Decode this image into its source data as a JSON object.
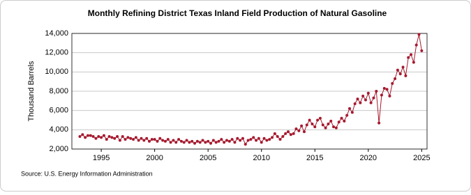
{
  "chart_data": {
    "type": "line",
    "title": "Monthly Refining District Texas Inland Field Production of Natural Gasoline",
    "y_label": "Thousand Barrels",
    "source": "Source: U.S. Energy Information Administration",
    "x": [
      1993,
      1993.25,
      1993.5,
      1993.75,
      1994,
      1994.25,
      1994.5,
      1994.75,
      1995,
      1995.25,
      1995.5,
      1995.75,
      1996,
      1996.25,
      1996.5,
      1996.75,
      1997,
      1997.25,
      1997.5,
      1997.75,
      1998,
      1998.25,
      1998.5,
      1998.75,
      1999,
      1999.25,
      1999.5,
      1999.75,
      2000,
      2000.25,
      2000.5,
      2000.75,
      2001,
      2001.25,
      2001.5,
      2001.75,
      2002,
      2002.25,
      2002.5,
      2002.75,
      2003,
      2003.25,
      2003.5,
      2003.75,
      2004,
      2004.25,
      2004.5,
      2004.75,
      2005,
      2005.25,
      2005.5,
      2005.75,
      2006,
      2006.25,
      2006.5,
      2006.75,
      2007,
      2007.25,
      2007.5,
      2007.75,
      2008,
      2008.25,
      2008.5,
      2008.75,
      2009,
      2009.25,
      2009.5,
      2009.75,
      2010,
      2010.25,
      2010.5,
      2010.75,
      2011,
      2011.25,
      2011.5,
      2011.75,
      2012,
      2012.25,
      2012.5,
      2012.75,
      2013,
      2013.25,
      2013.5,
      2013.75,
      2014,
      2014.25,
      2014.5,
      2014.75,
      2015,
      2015.25,
      2015.5,
      2015.75,
      2016,
      2016.25,
      2016.5,
      2016.75,
      2017,
      2017.25,
      2017.5,
      2017.75,
      2018,
      2018.25,
      2018.5,
      2018.75,
      2019,
      2019.25,
      2019.5,
      2019.75,
      2020,
      2020.25,
      2020.5,
      2020.75,
      2021,
      2021.25,
      2021.5,
      2021.75,
      2022,
      2022.25,
      2022.5,
      2022.75,
      2023,
      2023.25,
      2023.5,
      2023.75,
      2024,
      2024.25,
      2024.5,
      2024.75,
      2025
    ],
    "series": [
      {
        "name": "Texas Inland Natural Gasoline",
        "color": "#a6192e",
        "values": [
          3300,
          3500,
          3200,
          3400,
          3400,
          3300,
          3100,
          3300,
          3200,
          3400,
          3000,
          3300,
          3200,
          3100,
          3300,
          2900,
          3300,
          3000,
          3200,
          3100,
          3000,
          3200,
          2900,
          3100,
          2900,
          3100,
          2800,
          3000,
          3000,
          2800,
          3100,
          2900,
          2800,
          3000,
          2700,
          2900,
          2700,
          3000,
          2800,
          2700,
          2900,
          2700,
          2800,
          2600,
          2800,
          2700,
          2900,
          2700,
          2800,
          2600,
          2900,
          2700,
          2800,
          3000,
          2700,
          2900,
          2800,
          3000,
          2700,
          3100,
          2900,
          3100,
          2500,
          2900,
          3000,
          3200,
          2900,
          3100,
          2700,
          3100,
          2900,
          3000,
          3200,
          3600,
          3300,
          3000,
          3300,
          3600,
          3800,
          3500,
          3600,
          4100,
          3900,
          4400,
          3800,
          4500,
          5000,
          4600,
          4300,
          5000,
          5200,
          4500,
          4200,
          4600,
          4900,
          4300,
          4200,
          4800,
          5200,
          4900,
          5500,
          6200,
          5800,
          6700,
          7200,
          6800,
          7500,
          7100,
          7800,
          6800,
          7300,
          8000,
          4700,
          7600,
          8300,
          8200,
          7500,
          8800,
          9300,
          10200,
          9800,
          10500,
          9600,
          11500,
          11800,
          11000,
          12800,
          13900,
          12200
        ]
      }
    ],
    "xlim": [
      1992.25,
      2025.5
    ],
    "xticks": [
      1995,
      2000,
      2005,
      2010,
      2015,
      2020,
      2025
    ],
    "ylim": [
      2000,
      14000
    ],
    "yticks": [
      {
        "value": 2000,
        "label": "2,000"
      },
      {
        "value": 4000,
        "label": "4,000"
      },
      {
        "value": 6000,
        "label": "6,000"
      },
      {
        "value": 8000,
        "label": "8,000"
      },
      {
        "value": 10000,
        "label": "10,000"
      },
      {
        "value": 12000,
        "label": "12,000"
      },
      {
        "value": 14000,
        "label": "14,000"
      }
    ],
    "grid": true
  }
}
